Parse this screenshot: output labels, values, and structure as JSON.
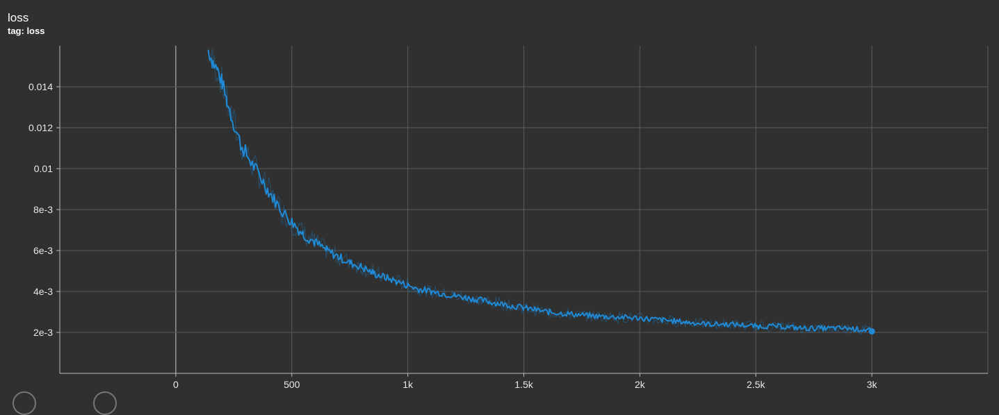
{
  "header": {
    "title": "loss",
    "subtitle": "tag: loss"
  },
  "colors": {
    "background": "#303030",
    "grid": "#5a5a5a",
    "axis": "#bdbdbd",
    "series_smoothed": "#1f8ad6",
    "series_raw": "#1f6fa8"
  },
  "chart_data": {
    "type": "line",
    "title": "loss",
    "subtitle": "tag: loss",
    "xlim": [
      -500,
      3500
    ],
    "ylim": [
      0,
      0.016
    ],
    "x_ticks": [
      0,
      500,
      1000,
      1500,
      2000,
      2500,
      3000
    ],
    "x_tick_labels": [
      "0",
      "500",
      "1k",
      "1.5k",
      "2k",
      "2.5k",
      "3k"
    ],
    "y_ticks": [
      0.002,
      0.004,
      0.006,
      0.008,
      0.01,
      0.012,
      0.014
    ],
    "y_tick_labels": [
      "2e-3",
      "4e-3",
      "6e-3",
      "8e-3",
      "0.01",
      "0.012",
      "0.014"
    ],
    "grid": true,
    "legend": "none",
    "series": [
      {
        "x": [
          140,
          160,
          180,
          200,
          220,
          250,
          280,
          300,
          330,
          360,
          400,
          430,
          460,
          500,
          550,
          600,
          650,
          700,
          750,
          800,
          850,
          900,
          950,
          1000,
          1050,
          1100,
          1150,
          1200,
          1250,
          1300,
          1350,
          1400,
          1450,
          1500,
          1600,
          1700,
          1800,
          1900,
          2000,
          2100,
          2200,
          2300,
          2400,
          2500,
          2600,
          2700,
          2800,
          2900,
          3000
        ],
        "y": [
          0.0158,
          0.0152,
          0.0148,
          0.0142,
          0.0133,
          0.0122,
          0.0112,
          0.0108,
          0.0102,
          0.0097,
          0.0089,
          0.0084,
          0.0079,
          0.0074,
          0.0068,
          0.0064,
          0.006,
          0.0057,
          0.0054,
          0.0052,
          0.0049,
          0.0047,
          0.0045,
          0.0043,
          0.0041,
          0.004,
          0.0039,
          0.0038,
          0.0037,
          0.0036,
          0.0035,
          0.0034,
          0.0033,
          0.0032,
          0.003,
          0.0029,
          0.0028,
          0.00275,
          0.0027,
          0.0026,
          0.0025,
          0.0024,
          0.0024,
          0.0023,
          0.0023,
          0.0022,
          0.0022,
          0.0022,
          0.0021
        ],
        "noise": [
          0.0004,
          0.0004,
          0.0004,
          0.0004,
          0.0004,
          0.0004,
          0.0004,
          0.0004,
          0.00035,
          0.00035,
          0.00035,
          0.0003,
          0.0003,
          0.0003,
          0.00028,
          0.00026,
          0.00024,
          0.00022,
          0.0002,
          0.0002,
          0.0002,
          0.00018,
          0.00018,
          0.00018,
          0.00016,
          0.00016,
          0.00016,
          0.00016,
          0.00016,
          0.00016,
          0.00016,
          0.00015,
          0.00015,
          0.00015,
          0.00015,
          0.00014,
          0.00014,
          0.00014,
          0.00014,
          0.00014,
          0.00013,
          0.00013,
          0.00013,
          0.00013,
          0.00013,
          0.00013,
          0.00013,
          0.00013,
          0.00013
        ],
        "last_point": [
          3000,
          0.00205
        ]
      }
    ]
  }
}
